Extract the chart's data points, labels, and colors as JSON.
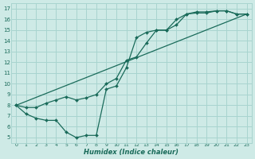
{
  "xlabel": "Humidex (Indice chaleur)",
  "bg_color": "#ceeae6",
  "grid_color": "#a8d4cf",
  "line_color": "#1a6b5a",
  "xlim": [
    -0.5,
    23.5
  ],
  "ylim": [
    4.5,
    17.5
  ],
  "xticks": [
    0,
    1,
    2,
    3,
    4,
    5,
    6,
    7,
    8,
    9,
    10,
    11,
    12,
    13,
    14,
    15,
    16,
    17,
    18,
    19,
    20,
    21,
    22,
    23
  ],
  "yticks": [
    5,
    6,
    7,
    8,
    9,
    10,
    11,
    12,
    13,
    14,
    15,
    16,
    17
  ],
  "line1_x": [
    0,
    1,
    2,
    3,
    4,
    5,
    6,
    7,
    8,
    9,
    10,
    11,
    12,
    13,
    14,
    15,
    16,
    17,
    18,
    19,
    20,
    21,
    22,
    23
  ],
  "line1_y": [
    8.0,
    7.2,
    6.8,
    6.6,
    6.6,
    5.5,
    5.0,
    5.2,
    5.2,
    9.5,
    9.8,
    11.5,
    14.3,
    14.8,
    15.0,
    15.0,
    16.0,
    16.5,
    16.7,
    16.7,
    16.8,
    16.8,
    16.5,
    16.5
  ],
  "line2_x": [
    0,
    1,
    2,
    3,
    4,
    5,
    6,
    7,
    8,
    9,
    10,
    11,
    12,
    13,
    14,
    15,
    16,
    17,
    18,
    19,
    20,
    21,
    22,
    23
  ],
  "line2_y": [
    8.0,
    7.8,
    7.8,
    8.2,
    8.5,
    8.8,
    8.5,
    8.7,
    9.0,
    10.0,
    10.5,
    12.2,
    12.5,
    13.8,
    15.0,
    15.0,
    15.5,
    16.5,
    16.6,
    16.6,
    16.8,
    16.8,
    16.5,
    16.5
  ],
  "line3_x": [
    0,
    23
  ],
  "line3_y": [
    8.0,
    16.5
  ]
}
